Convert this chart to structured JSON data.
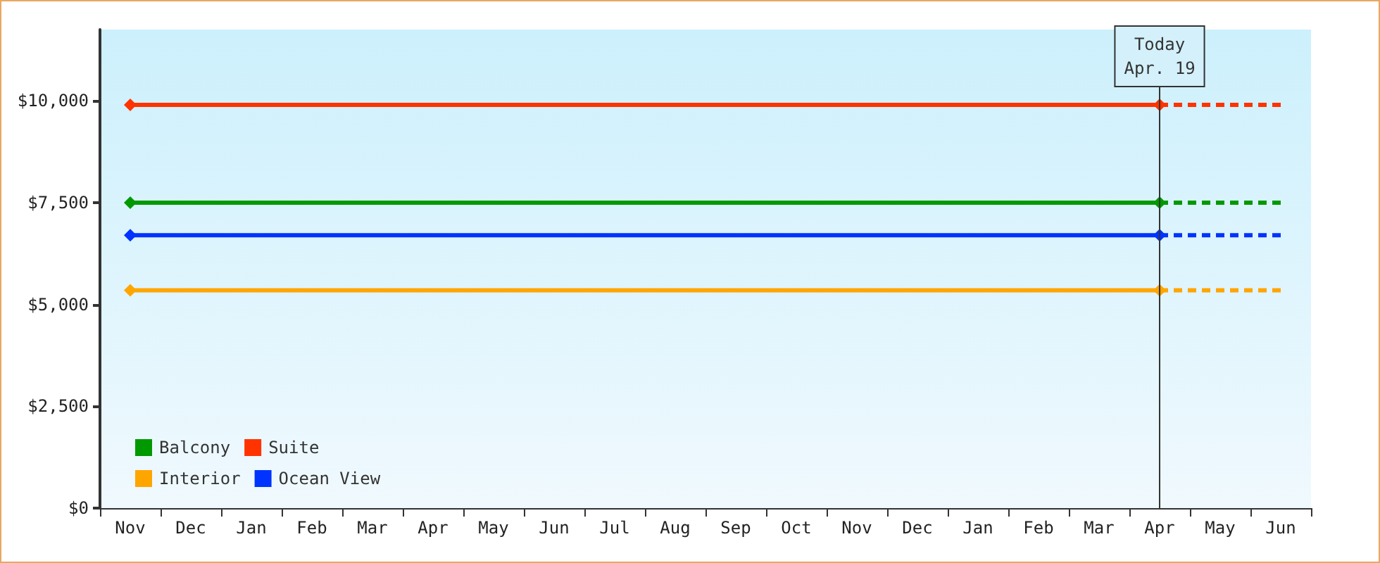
{
  "chart_data": {
    "type": "line",
    "categories": [
      "Nov",
      "Dec",
      "Jan",
      "Feb",
      "Mar",
      "Apr",
      "May",
      "Jun",
      "Jul",
      "Aug",
      "Sep",
      "Oct",
      "Nov",
      "Dec",
      "Jan",
      "Feb",
      "Mar",
      "Apr",
      "May",
      "Jun"
    ],
    "series": [
      {
        "name": "Balcony",
        "color": "#009900",
        "values": [
          7500,
          null,
          null,
          null,
          null,
          null,
          null,
          null,
          null,
          null,
          null,
          null,
          null,
          null,
          null,
          null,
          null,
          7500,
          null,
          7500
        ]
      },
      {
        "name": "Suite",
        "color": "#ff3300",
        "values": [
          9900,
          null,
          null,
          null,
          null,
          null,
          null,
          null,
          null,
          null,
          null,
          null,
          null,
          null,
          null,
          null,
          null,
          9900,
          null,
          9900
        ]
      },
      {
        "name": "Interior",
        "color": "#ffa500",
        "values": [
          5350,
          null,
          null,
          null,
          null,
          null,
          null,
          null,
          null,
          null,
          null,
          null,
          null,
          null,
          null,
          null,
          null,
          5350,
          null,
          5350
        ]
      },
      {
        "name": "Ocean View",
        "color": "#0033ff",
        "values": [
          6700,
          null,
          null,
          null,
          null,
          null,
          null,
          null,
          null,
          null,
          null,
          null,
          null,
          null,
          null,
          null,
          null,
          6700,
          null,
          6700
        ]
      }
    ],
    "ylim": [
      0,
      11750
    ],
    "yticks": [
      {
        "value": 0,
        "label": "$0"
      },
      {
        "value": 2500,
        "label": "$2,500"
      },
      {
        "value": 5000,
        "label": "$5,000"
      },
      {
        "value": 7500,
        "label": "$7,500"
      },
      {
        "value": 10000,
        "label": "$10,000"
      }
    ],
    "annotations": [
      "Today\nApr. 19"
    ],
    "legend": "bottom left",
    "marker": "diamond",
    "line_style": "solid"
  }
}
